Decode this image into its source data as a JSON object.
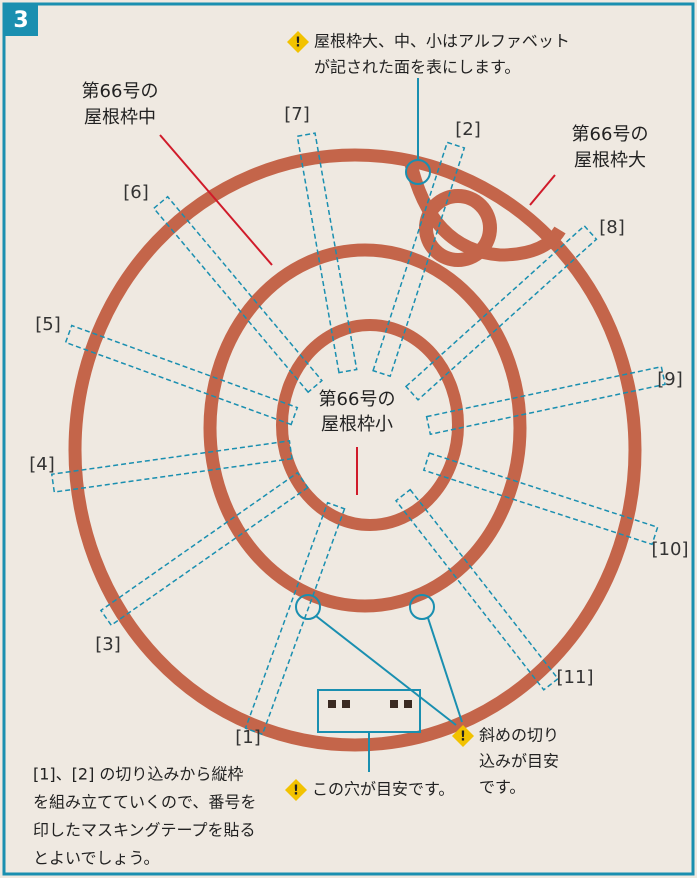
{
  "step": "3",
  "callouts": {
    "face_note": {
      "lines": [
        "屋根枠大、中、小はアルファベット",
        "が記された面を表にします。"
      ]
    },
    "ring_medium": {
      "lines": [
        "第66号の",
        "屋根枠中"
      ]
    },
    "ring_large": {
      "lines": [
        "第66号の",
        "屋根枠大"
      ]
    },
    "ring_small": {
      "lines": [
        "第66号の",
        "屋根枠小"
      ]
    },
    "hole_note": {
      "lines": [
        "この穴が目安です。"
      ]
    },
    "slit_note": {
      "lines": [
        "斜めの切り",
        "込みが目安",
        "です。"
      ]
    }
  },
  "slot_labels": [
    "[1]",
    "[2]",
    "[3]",
    "[4]",
    "[5]",
    "[6]",
    "[7]",
    "[8]",
    "[9]",
    "[10]",
    "[11]"
  ],
  "instructions": {
    "lines": [
      "[1]、[2] の切り込みから縦枠",
      "を組み立てていくので、番号を",
      "印したマスキングテープを貼る",
      "とよいでしょう。"
    ]
  }
}
